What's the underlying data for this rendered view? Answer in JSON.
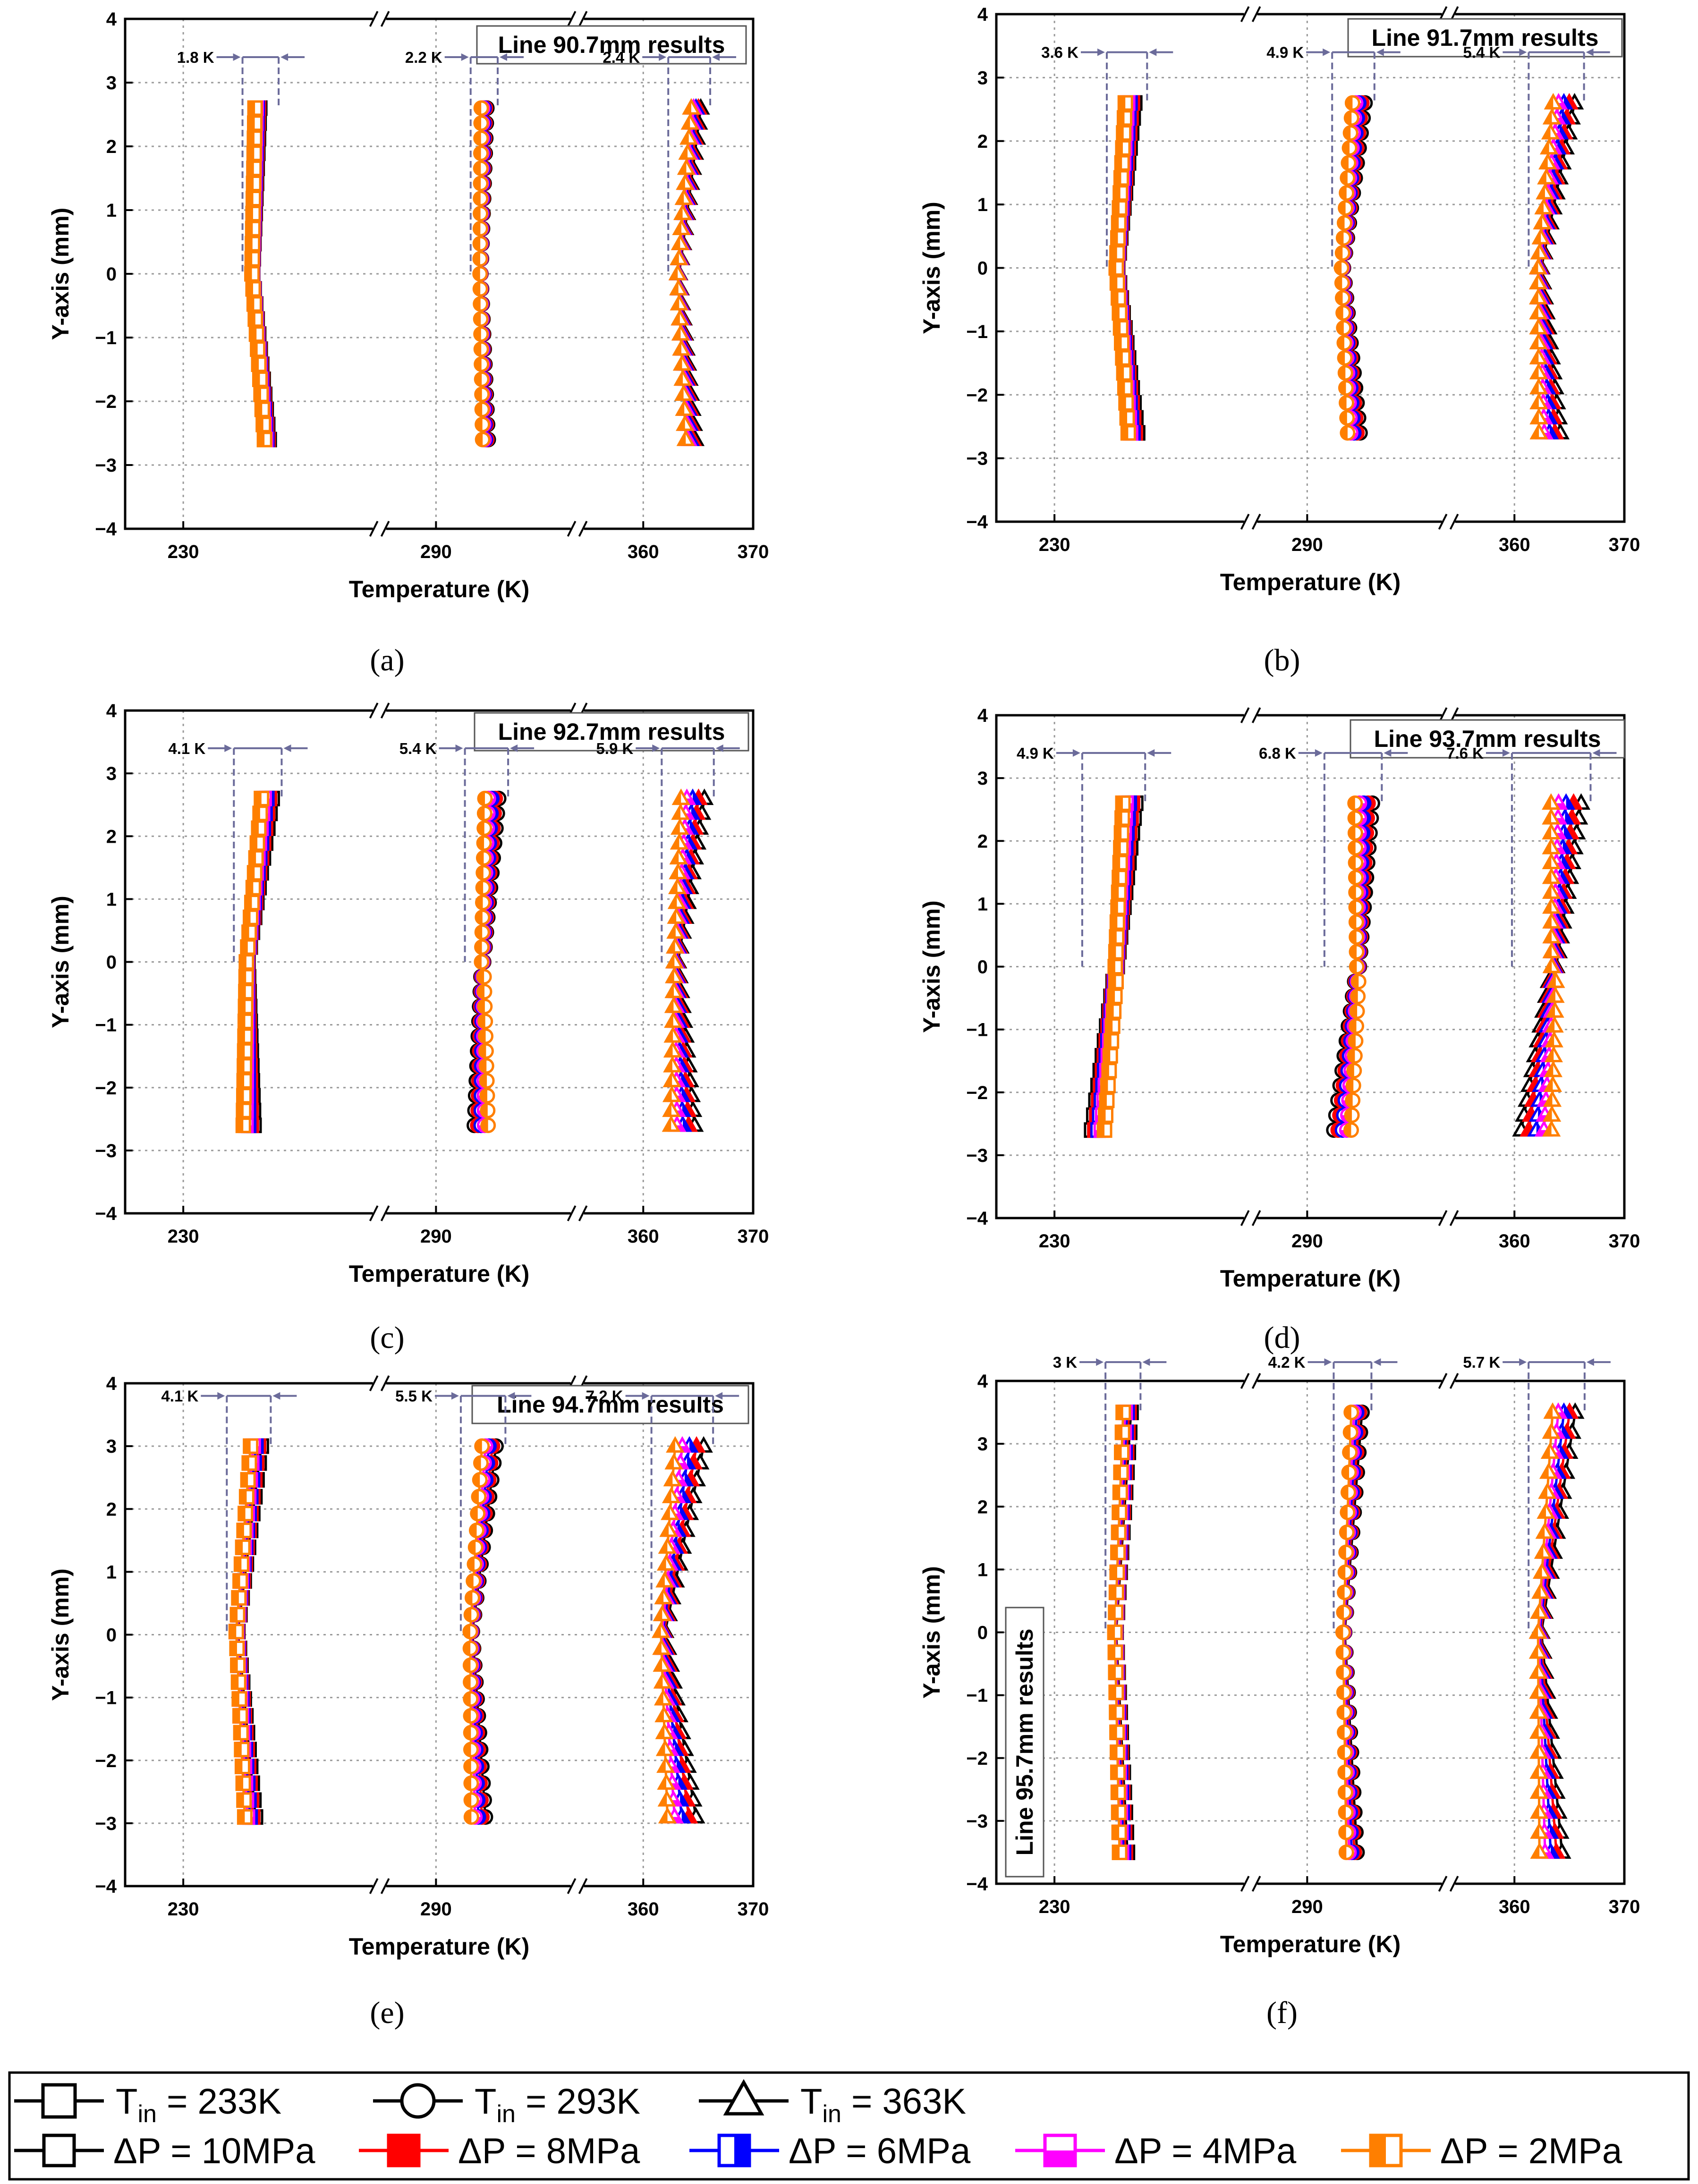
{
  "chart_data": [
    {
      "id": "a",
      "type": "scatter",
      "caption": "(a)",
      "title": "Line 90.7mm results",
      "xlabel": "Temperature (K)",
      "ylabel": "Y-axis (mm)",
      "ylim": [
        -4,
        4
      ],
      "yticks": [
        "4",
        "3",
        "2",
        "1",
        "0",
        "−1",
        "−2",
        "−3",
        "−4"
      ],
      "xticks": [
        "230",
        "290",
        "360",
        "370"
      ],
      "y_range": [
        -2.6,
        2.6
      ],
      "spread_labels": [
        "1.8 K",
        "2.2 K",
        "2.4 K"
      ],
      "profiles": {
        "square": {
          "bottom": 241.5,
          "mid": 239.5,
          "top": 240.2,
          "dT": 1.8
        },
        "circle": {
          "bottom": 297.0,
          "mid": 296.3,
          "top": 296.8,
          "dT": 2.2
        },
        "triangle": {
          "bottom": 364.3,
          "mid": 363.2,
          "top": 364.8,
          "dT": 2.4
        }
      }
    },
    {
      "id": "b",
      "type": "scatter",
      "caption": "(b)",
      "title": "Line 91.7mm results",
      "xlabel": "Temperature (K)",
      "ylabel": "Y-axis (mm)",
      "ylim": [
        -4,
        4
      ],
      "yticks": [
        "4",
        "3",
        "2",
        "1",
        "0",
        "−1",
        "−2",
        "−3",
        "−4"
      ],
      "xticks": [
        "230",
        "290",
        "360",
        "370"
      ],
      "y_range": [
        -2.6,
        2.6
      ],
      "spread_labels": [
        "3.6 K",
        "4.9 K",
        "5.4 K"
      ],
      "profiles": {
        "square": {
          "bottom": 240.8,
          "mid": 238.6,
          "top": 240.4,
          "dT": 3.6
        },
        "circle": {
          "bottom": 296.6,
          "mid": 295.0,
          "top": 297.3,
          "dT": 4.9
        },
        "triangle": {
          "bottom": 363.2,
          "mid": 362.3,
          "top": 364.5,
          "dT": 5.4
        }
      }
    },
    {
      "id": "c",
      "type": "scatter",
      "caption": "(c)",
      "title": "Line 92.7mm results",
      "xlabel": "Temperature (K)",
      "ylabel": "Y-axis (mm)",
      "ylim": [
        -4,
        4
      ],
      "yticks": [
        "4",
        "3",
        "2",
        "1",
        "0",
        "−1",
        "−2",
        "−3",
        "−4"
      ],
      "xticks": [
        "230",
        "290",
        "360",
        "370"
      ],
      "y_range": [
        -2.6,
        2.6
      ],
      "spread_labels": [
        "4.1 K",
        "5.4 K",
        "5.9 K"
      ],
      "profiles": {
        "square": {
          "bottom": 239.0,
          "mid": 238.8,
          "top": 241.5,
          "dT": 4.1
        },
        "circle": {
          "bottom": 296.4,
          "mid": 296.6,
          "top": 297.9,
          "dT": 5.4
        },
        "triangle": {
          "bottom": 363.6,
          "mid": 363.0,
          "top": 364.5,
          "dT": 5.9
        }
      }
    },
    {
      "id": "d",
      "type": "scatter",
      "caption": "(d)",
      "title": "Line 93.7mm results",
      "xlabel": "Temperature (K)",
      "ylabel": "Y-axis (mm)",
      "ylim": [
        -4,
        4
      ],
      "yticks": [
        "4",
        "3",
        "2",
        "1",
        "0",
        "−1",
        "−2",
        "−3",
        "−4"
      ],
      "xticks": [
        "230",
        "290",
        "360",
        "370"
      ],
      "y_range": [
        -2.6,
        2.6
      ],
      "spread_labels": [
        "4.9 K",
        "6.8 K",
        "7.6 K"
      ],
      "profiles": {
        "square": {
          "bottom": 236.0,
          "mid": 238.5,
          "top": 240.3,
          "dT": 4.9
        },
        "circle": {
          "bottom": 295.0,
          "mid": 297.2,
          "top": 298.0,
          "dT": 6.8
        },
        "triangle": {
          "bottom": 362.0,
          "mid": 363.6,
          "top": 364.7,
          "dT": 7.6
        }
      }
    },
    {
      "id": "e",
      "type": "scatter",
      "caption": "(e)",
      "title": "Line 94.7mm results",
      "xlabel": "Temperature (K)",
      "ylabel": "Y-axis (mm)",
      "ylim": [
        -4,
        4
      ],
      "yticks": [
        "4",
        "3",
        "2",
        "1",
        "0",
        "−1",
        "−2",
        "−3",
        "−4"
      ],
      "xticks": [
        "230",
        "290",
        "360",
        "370"
      ],
      "y_range": [
        -2.9,
        3.0
      ],
      "spread_labels": [
        "4.1 K",
        "5.5 K",
        "7.2 K"
      ],
      "profiles": {
        "square": {
          "bottom": 239.2,
          "mid": 237.4,
          "top": 240.0,
          "dT": 4.1
        },
        "circle": {
          "bottom": 296.0,
          "mid": 295.0,
          "top": 297.5,
          "dT": 5.5
        },
        "triangle": {
          "bottom": 363.5,
          "mid": 361.8,
          "top": 364.2,
          "dT": 7.2
        }
      }
    },
    {
      "id": "f",
      "type": "scatter",
      "caption": "(f)",
      "title": "Line 95.7mm results",
      "xlabel": "Temperature (K)",
      "ylabel": "Y-axis (mm)",
      "ylim": [
        -4,
        4
      ],
      "yticks": [
        "4",
        "3",
        "2",
        "1",
        "0",
        "−1",
        "−2",
        "−3",
        "−4"
      ],
      "xticks": [
        "230",
        "290",
        "360",
        "370"
      ],
      "y_range": [
        -3.5,
        3.5
      ],
      "spread_labels": [
        "3 K",
        "4.2 K",
        "5.7 K"
      ],
      "profiles": {
        "square": {
          "bottom": 239.5,
          "mid": 238.4,
          "top": 240.0,
          "dT": 3.0
        },
        "circle": {
          "bottom": 296.3,
          "mid": 295.2,
          "top": 297.0,
          "dT": 4.2
        },
        "triangle": {
          "bottom": 363.3,
          "mid": 362.3,
          "top": 364.5,
          "dT": 5.7
        }
      }
    }
  ],
  "legend": {
    "temperature": [
      {
        "name": "T_in = 233K",
        "prefix": "T",
        "sub": "in",
        "suffix": " = 233K",
        "marker": "square"
      },
      {
        "name": "T_in = 293K",
        "prefix": "T",
        "sub": "in",
        "suffix": " = 293K",
        "marker": "circle"
      },
      {
        "name": "T_in = 363K",
        "prefix": "T",
        "sub": "in",
        "suffix": " = 363K",
        "marker": "triangle"
      }
    ],
    "pressure": [
      {
        "label": "ΔP = 10MPa",
        "color": "#000000",
        "fill": "none"
      },
      {
        "label": "ΔP = 8MPa",
        "color": "#ff0000",
        "fill": "full"
      },
      {
        "label": "ΔP = 6MPa",
        "color": "#0000ff",
        "fill": "right"
      },
      {
        "label": "ΔP = 4MPa",
        "color": "#ff00ff",
        "fill": "bottom"
      },
      {
        "label": "ΔP = 2MPa",
        "color": "#ff7f00",
        "fill": "left"
      }
    ]
  },
  "colors": {
    "dash": "#6b6b9a",
    "grid": "#9a9a9a"
  }
}
